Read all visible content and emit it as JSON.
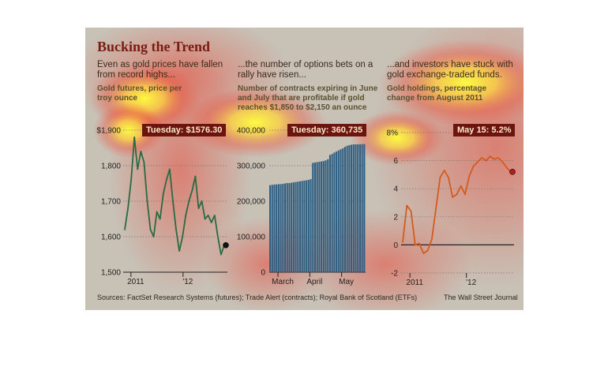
{
  "title": "Bucking the Trend",
  "footer": {
    "sources": "Sources: FactSet Research Systems (futures); Trade Alert (contracts); Royal Bank of Scotland (ETFs)",
    "credit": "The Wall Street Journal"
  },
  "panels": [
    {
      "headline": "Even as gold prices have fallen from record highs...",
      "subtitle": "Gold futures, price per troy ounce",
      "callout": "Tuesday: $1576.30"
    },
    {
      "headline": "...the number of options bets on a rally have risen...",
      "subtitle": "Number of contracts expiring in June and July that are profitable if gold reaches $1,850 to $2,150 an ounce",
      "callout": "Tuesday: 360,735"
    },
    {
      "headline": "...and investors have stuck with gold exchange-traded funds.",
      "subtitle": "Gold holdings, percentage change from August 2011",
      "callout": "May 15: 5.2%"
    }
  ],
  "colors": {
    "gold_line": "#2a6a44",
    "contracts_bar": "#2f5f82",
    "etf_line": "#d45a1e",
    "callout_bg": "#6b1410"
  },
  "chart_data": [
    {
      "type": "line",
      "title": "Gold futures, price per troy ounce",
      "x_tick_labels": [
        "2011",
        "'12"
      ],
      "y_tick_labels": [
        "$1,900",
        "1,800",
        "1,700",
        "1,600",
        "1,500"
      ],
      "ylim": [
        1500,
        1900
      ],
      "x": [
        "2011-07",
        "2011-07",
        "2011-08",
        "2011-08",
        "2011-08",
        "2011-08",
        "2011-09",
        "2011-09",
        "2011-09",
        "2011-09",
        "2011-10",
        "2011-10",
        "2011-10",
        "2011-11",
        "2011-11",
        "2011-11",
        "2011-12",
        "2011-12",
        "2011-12",
        "2012-01",
        "2012-01",
        "2012-02",
        "2012-02",
        "2012-02",
        "2012-03",
        "2012-03",
        "2012-03",
        "2012-04",
        "2012-04",
        "2012-05",
        "2012-05",
        "2012-05"
      ],
      "series": [
        {
          "values": [
            1620,
            1680,
            1760,
            1880,
            1790,
            1840,
            1810,
            1700,
            1620,
            1600,
            1670,
            1650,
            1720,
            1760,
            1790,
            1700,
            1620,
            1560,
            1600,
            1660,
            1700,
            1730,
            1770,
            1680,
            1700,
            1650,
            1660,
            1640,
            1660,
            1600,
            1550,
            1576
          ]
        }
      ],
      "callout_value": 1576.3,
      "grid": true
    },
    {
      "type": "bar",
      "title": "Number of contracts expiring in June and July that are profitable if gold reaches $1,850 to $2,150 an ounce",
      "x_tick_labels": [
        "March",
        "April",
        "May"
      ],
      "y_tick_labels": [
        "400,000",
        "300,000",
        "200,000",
        "100,000",
        "0"
      ],
      "ylim": [
        0,
        400000
      ],
      "series": [
        {
          "values": [
            245000,
            246000,
            247000,
            247000,
            248000,
            248000,
            249000,
            250000,
            251000,
            251000,
            252000,
            253000,
            254000,
            255000,
            256000,
            257000,
            258000,
            259000,
            260000,
            262000,
            308000,
            309000,
            310000,
            311000,
            312000,
            313000,
            315000,
            318000,
            330000,
            333000,
            337000,
            340000,
            343000,
            346000,
            349000,
            353000,
            356000,
            358000,
            359000,
            360000,
            360000,
            360000,
            360500,
            360600,
            360735
          ]
        }
      ],
      "callout_value": 360735,
      "grid": true
    },
    {
      "type": "line",
      "title": "Gold holdings, percentage change from August 2011",
      "x_tick_labels": [
        "2011",
        "'12"
      ],
      "y_tick_labels": [
        "8%",
        "6",
        "4",
        "2",
        "0",
        "-2"
      ],
      "ylim": [
        -2,
        8
      ],
      "x": [
        "2011-08",
        "2011-08",
        "2011-08",
        "2011-09",
        "2011-09",
        "2011-10",
        "2011-10",
        "2011-10",
        "2011-11",
        "2011-11",
        "2011-11",
        "2011-12",
        "2011-12",
        "2011-12",
        "2012-01",
        "2012-01",
        "2012-01",
        "2012-02",
        "2012-02",
        "2012-03",
        "2012-03",
        "2012-03",
        "2012-04",
        "2012-04",
        "2012-05",
        "2012-05",
        "2012-05"
      ],
      "series": [
        {
          "values": [
            0.2,
            2.8,
            2.4,
            0,
            0.1,
            -0.6,
            -0.4,
            0.4,
            2.6,
            4.8,
            5.3,
            4.8,
            3.4,
            3.6,
            4.2,
            3.6,
            4.9,
            5.6,
            5.9,
            6.2,
            6.0,
            6.3,
            6.1,
            6.2,
            5.9,
            5.5,
            5.2
          ]
        }
      ],
      "callout_value": 5.2,
      "grid": true
    }
  ]
}
